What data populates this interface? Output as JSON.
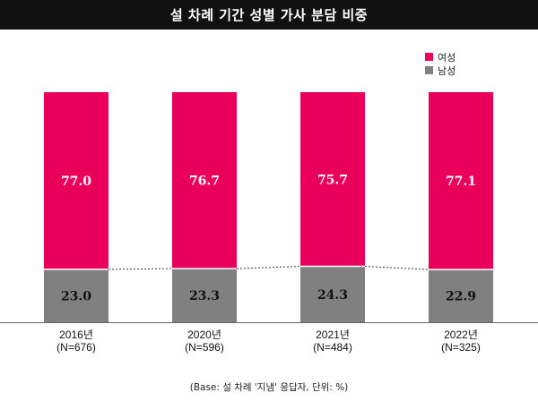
{
  "title": "설 차례 기간 성별 가사 분담 비중",
  "footnote": "(Base: 설 차례 '지냄' 응답자, 단위: %)",
  "colors": {
    "female": "#e8005a",
    "male": "#808080",
    "title_bg": "#111111"
  },
  "chart_data": {
    "type": "bar",
    "stacked": true,
    "categories": [
      "2016년\n(N=676)",
      "2020년\n(N=596)",
      "2021년\n(N=484)",
      "2022년\n(N=325)"
    ],
    "series": [
      {
        "name": "여성",
        "values": [
          77.0,
          76.7,
          75.7,
          77.1
        ],
        "labels": [
          "77.0",
          "76.7",
          "75.7",
          "77.1"
        ]
      },
      {
        "name": "남성",
        "values": [
          23.0,
          23.3,
          24.3,
          22.9
        ],
        "labels": [
          "23.0",
          "23.3",
          "24.3",
          "22.9"
        ]
      }
    ],
    "ylim": [
      0,
      100
    ],
    "legend": "top-right",
    "connector_lines": "dotted"
  }
}
